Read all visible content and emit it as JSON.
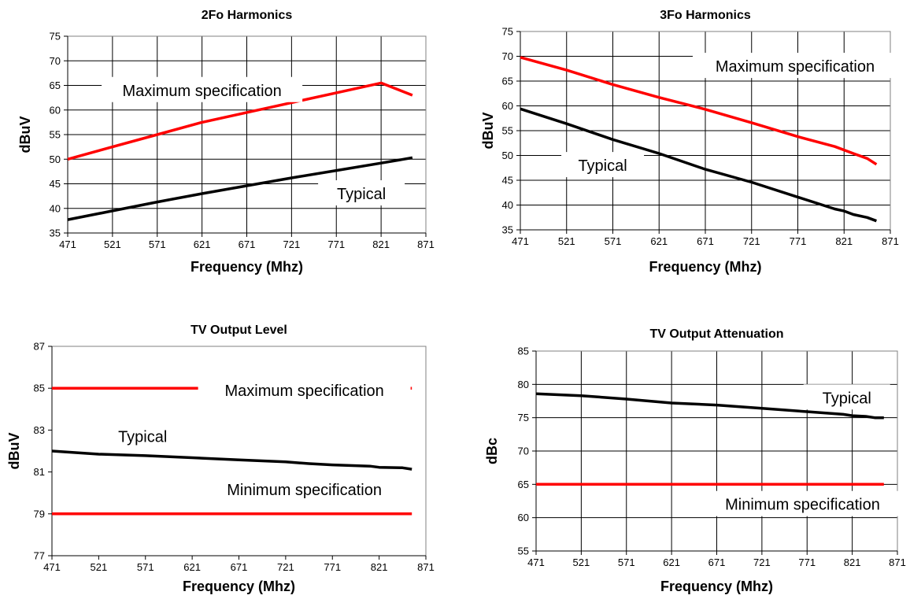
{
  "chart_data": [
    {
      "type": "line",
      "title": "2Fo Harmonics",
      "xlabel": "Frequency (Mhz)",
      "ylabel": "dBuV",
      "xlim": [
        471,
        871
      ],
      "ylim": [
        35,
        75
      ],
      "xticks": [
        471,
        521,
        571,
        621,
        671,
        721,
        771,
        821,
        871
      ],
      "yticks": [
        35,
        40,
        45,
        50,
        55,
        60,
        65,
        70,
        75
      ],
      "grid": true,
      "series": [
        {
          "key": "max",
          "color": "#ff0000",
          "x": [
            471,
            521,
            571,
            621,
            671,
            721,
            771,
            821,
            856
          ],
          "y": [
            50,
            52.5,
            55.0,
            57.5,
            59.5,
            61.5,
            63.5,
            65.5,
            63.0
          ]
        },
        {
          "key": "typ",
          "color": "#000000",
          "x": [
            471,
            521,
            571,
            621,
            671,
            721,
            771,
            821,
            846,
            856
          ],
          "y": [
            37.7,
            39.5,
            41.3,
            43.0,
            44.6,
            46.2,
            47.7,
            49.2,
            50.0,
            50.3
          ]
        }
      ],
      "annotations": [
        {
          "text": "Maximum specification",
          "x": 621,
          "y": 64,
          "anchor": "middle"
        },
        {
          "text": "Typical",
          "x": 799,
          "y": 43,
          "anchor": "middle"
        }
      ]
    },
    {
      "type": "line",
      "title": "3Fo Harmonics",
      "xlabel": "Frequency (Mhz)",
      "ylabel": "dBuV",
      "xlim": [
        471,
        871
      ],
      "ylim": [
        35,
        75
      ],
      "xticks": [
        471,
        521,
        571,
        621,
        671,
        721,
        771,
        821,
        871
      ],
      "yticks": [
        35,
        40,
        45,
        50,
        55,
        60,
        65,
        70,
        75
      ],
      "grid": true,
      "series": [
        {
          "key": "max",
          "color": "#ff0000",
          "x": [
            471,
            521,
            571,
            621,
            671,
            721,
            771,
            811,
            831,
            846,
            856
          ],
          "y": [
            69.8,
            67.2,
            64.3,
            61.7,
            59.3,
            56.6,
            53.8,
            51.8,
            50.4,
            49.4,
            48.2
          ]
        },
        {
          "key": "typ",
          "color": "#000000",
          "x": [
            471,
            521,
            571,
            621,
            671,
            721,
            771,
            811,
            821,
            831,
            846,
            856
          ],
          "y": [
            59.4,
            56.4,
            53.2,
            50.4,
            47.2,
            44.6,
            41.6,
            39.2,
            38.8,
            38.1,
            37.5,
            36.8
          ]
        }
      ],
      "annotations": [
        {
          "text": "Maximum specification",
          "x": 768,
          "y": 68,
          "anchor": "middle"
        },
        {
          "text": "Typical",
          "x": 560,
          "y": 48,
          "anchor": "middle"
        }
      ]
    },
    {
      "type": "line",
      "title": "TV Output Level",
      "xlabel": "Frequency (Mhz)",
      "ylabel": "dBuV",
      "xlim": [
        471,
        871
      ],
      "ylim": [
        77,
        87
      ],
      "xticks": [
        471,
        521,
        571,
        621,
        671,
        721,
        771,
        821,
        871
      ],
      "yticks": [
        77,
        79,
        81,
        83,
        85,
        87
      ],
      "grid": false,
      "series": [
        {
          "key": "max",
          "color": "#ff0000",
          "x": [
            471,
            856
          ],
          "y": [
            85,
            85
          ]
        },
        {
          "key": "min",
          "color": "#ff0000",
          "x": [
            471,
            856
          ],
          "y": [
            79,
            79
          ]
        },
        {
          "key": "typ",
          "color": "#000000",
          "x": [
            471,
            521,
            571,
            621,
            671,
            721,
            746,
            771,
            796,
            811,
            821,
            846,
            856
          ],
          "y": [
            82.0,
            81.85,
            81.78,
            81.68,
            81.58,
            81.48,
            81.4,
            81.34,
            81.3,
            81.28,
            81.22,
            81.2,
            81.13
          ]
        }
      ],
      "annotations": [
        {
          "text": "Maximum specification",
          "x": 741,
          "y": 84.9,
          "anchor": "middle"
        },
        {
          "text": "Typical",
          "x": 568,
          "y": 82.7,
          "anchor": "middle"
        },
        {
          "text": "Minimum specification",
          "x": 741,
          "y": 80.15,
          "anchor": "middle"
        }
      ]
    },
    {
      "type": "line",
      "title": "TV Output Attenuation",
      "xlabel": "Frequency (Mhz)",
      "ylabel": "dBc",
      "xlim": [
        471,
        871
      ],
      "ylim": [
        55,
        85
      ],
      "xticks": [
        471,
        521,
        571,
        621,
        671,
        721,
        771,
        821,
        871
      ],
      "yticks": [
        55,
        60,
        65,
        70,
        75,
        80,
        85
      ],
      "grid": true,
      "series": [
        {
          "key": "min",
          "color": "#ff0000",
          "x": [
            471,
            856
          ],
          "y": [
            65,
            65
          ]
        },
        {
          "key": "typ",
          "color": "#000000",
          "x": [
            471,
            521,
            571,
            621,
            671,
            721,
            771,
            811,
            821,
            836,
            846,
            856
          ],
          "y": [
            78.6,
            78.3,
            77.8,
            77.2,
            76.9,
            76.4,
            75.9,
            75.5,
            75.3,
            75.2,
            75.0,
            75.0
          ]
        }
      ],
      "annotations": [
        {
          "text": "Typical",
          "x": 815,
          "y": 78,
          "anchor": "middle"
        },
        {
          "text": "Minimum specification",
          "x": 766,
          "y": 62,
          "anchor": "middle"
        }
      ]
    }
  ]
}
